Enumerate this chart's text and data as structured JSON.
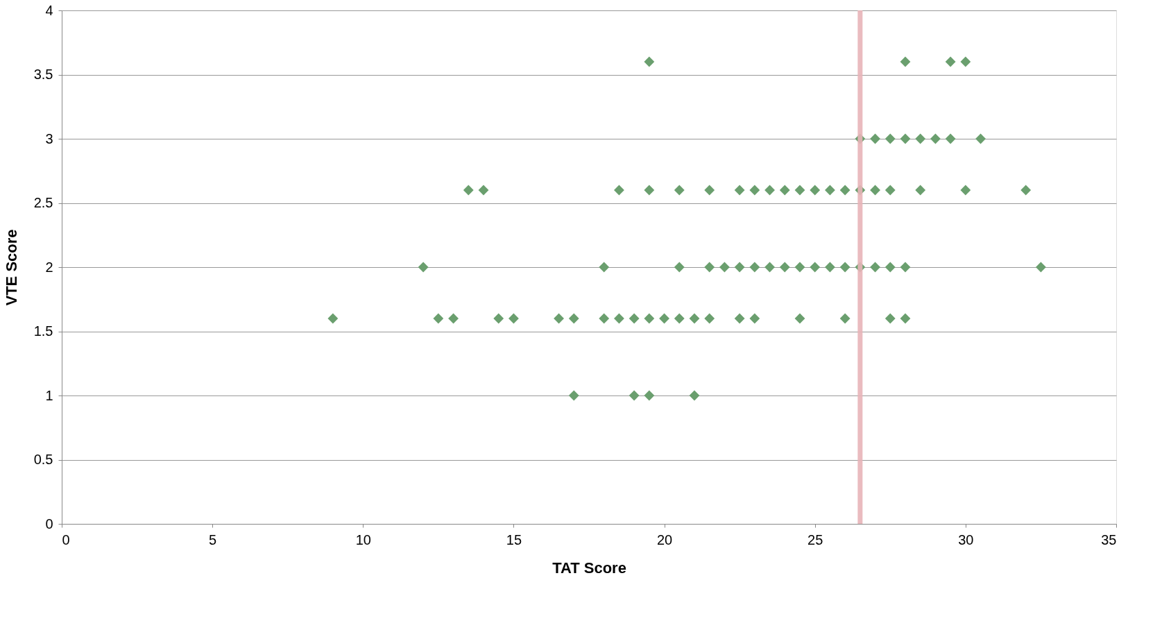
{
  "chart_data": {
    "type": "scatter",
    "xlabel": "TAT Score",
    "ylabel": "VTE Score",
    "xlim": [
      0,
      35
    ],
    "xticks": [
      0,
      5,
      10,
      15,
      20,
      25,
      30,
      35
    ],
    "ylim": [
      0,
      4
    ],
    "yticks": [
      0,
      0.5,
      1,
      1.5,
      2,
      2.5,
      3,
      3.5,
      4
    ],
    "grid": "y",
    "legend": false,
    "marker": "diamond",
    "series": [
      {
        "color": "#6a9f6e",
        "x": [
          19.5,
          28,
          29.5,
          30,
          26.5,
          27,
          27.5,
          28,
          28.5,
          29,
          29.5,
          30.5,
          13.5,
          14,
          18.5,
          19.5,
          20.5,
          21.5,
          22.5,
          23,
          23.5,
          24,
          24.5,
          25,
          25.5,
          26,
          26.5,
          27,
          27.5,
          28.5,
          30,
          32,
          12,
          18,
          20.5,
          21.5,
          22,
          22.5,
          23,
          23.5,
          24,
          24.5,
          25,
          25.5,
          26,
          26.5,
          27,
          27.5,
          28,
          32.5,
          9,
          12.5,
          13,
          14.5,
          15,
          16.5,
          17,
          18,
          18.5,
          19,
          19.5,
          20,
          20.5,
          21,
          21.5,
          22.5,
          23,
          24.5,
          26,
          27.5,
          28,
          17,
          19,
          19.5,
          21
        ],
        "values": [
          3.6,
          3.6,
          3.6,
          3.6,
          3,
          3,
          3,
          3,
          3,
          3,
          3,
          3,
          2.6,
          2.6,
          2.6,
          2.6,
          2.6,
          2.6,
          2.6,
          2.6,
          2.6,
          2.6,
          2.6,
          2.6,
          2.6,
          2.6,
          2.6,
          2.6,
          2.6,
          2.6,
          2.6,
          2.6,
          2,
          2,
          2,
          2,
          2,
          2,
          2,
          2,
          2,
          2,
          2,
          2,
          2,
          2,
          2,
          2,
          2,
          2,
          1.6,
          1.6,
          1.6,
          1.6,
          1.6,
          1.6,
          1.6,
          1.6,
          1.6,
          1.6,
          1.6,
          1.6,
          1.6,
          1.6,
          1.6,
          1.6,
          1.6,
          1.6,
          1.6,
          1.6,
          1.6,
          1,
          1,
          1,
          1
        ]
      }
    ],
    "ref_lines": [
      {
        "axis": "x",
        "value": 26.5,
        "color": "#e8b4b8"
      }
    ]
  }
}
